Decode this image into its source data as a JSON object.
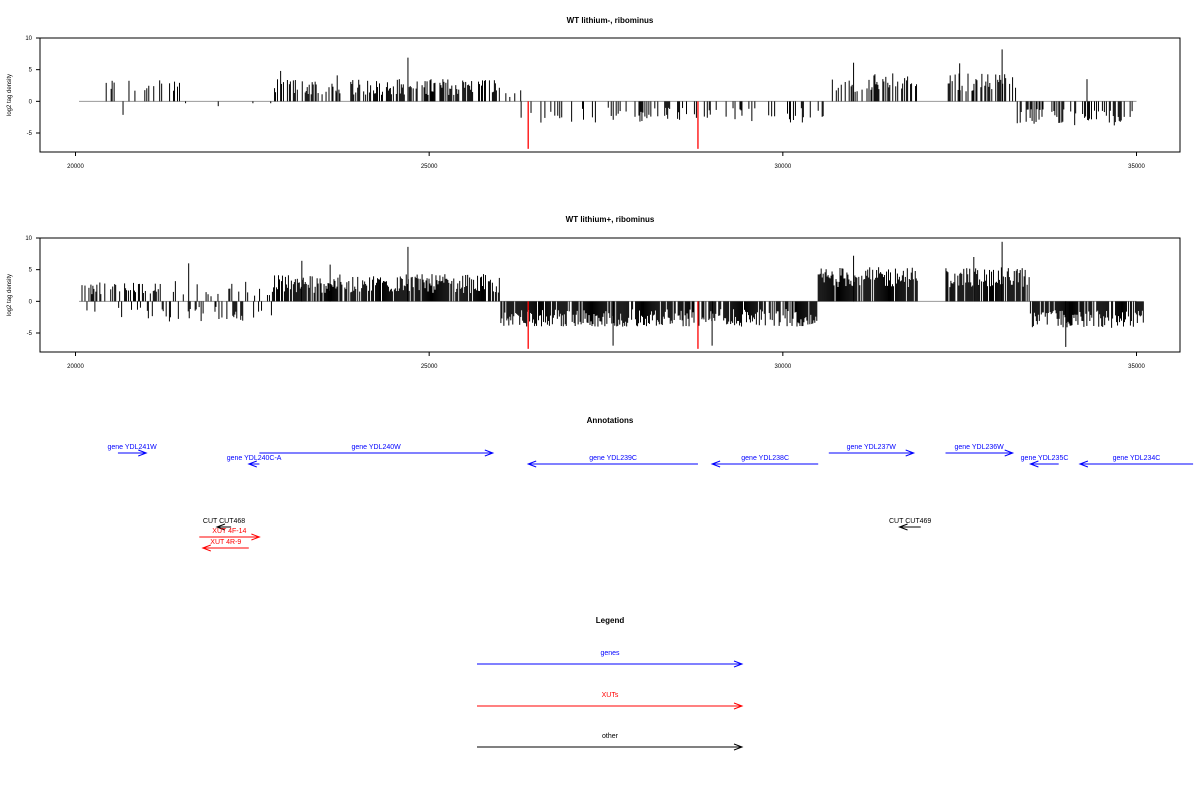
{
  "colors": {
    "gene": "#0000ff",
    "xut": "#ff0000",
    "other": "#000000",
    "marker": "#ff0000",
    "axis": "#000000",
    "baseline": "#999999"
  },
  "chart_data": [
    {
      "type": "bar",
      "title": "WT lithium-, ribominus",
      "ylabel": "log2 tag density",
      "xlim": [
        20000,
        35000
      ],
      "ylim": [
        -8,
        10
      ],
      "xticks": [
        20000,
        25000,
        30000,
        35000
      ],
      "yticks": [
        10,
        5,
        0,
        -5
      ],
      "markers_x": [
        26400,
        28800
      ],
      "segments": [
        {
          "from": 20050,
          "to": 20350,
          "mode": "zero"
        },
        {
          "from": 20350,
          "to": 21500,
          "mode": "sparse",
          "sign": 1,
          "mean": 2.5,
          "spread": 1.0,
          "prob": 0.25,
          "negChance": 0.2
        },
        {
          "from": 21500,
          "to": 22800,
          "mode": "sparse",
          "sign": -1,
          "mean": 0.5,
          "spread": 1.2,
          "prob": 0.06
        },
        {
          "from": 22800,
          "to": 26000,
          "mode": "dense",
          "sign": 1,
          "mean": 2.3,
          "spread": 1.3,
          "prob": 0.55,
          "peaks": [
            [
              24700,
              6.9
            ],
            [
              22900,
              4.8
            ],
            [
              23700,
              4.1
            ]
          ]
        },
        {
          "from": 26000,
          "to": 26300,
          "mode": "sparse",
          "sign": 1,
          "mean": 1.0,
          "spread": 0.8,
          "prob": 0.2
        },
        {
          "from": 26300,
          "to": 30700,
          "mode": "sparse",
          "sign": -1,
          "mean": 2.2,
          "spread": 1.2,
          "prob": 0.22
        },
        {
          "from": 30700,
          "to": 33300,
          "mode": "dense",
          "sign": 1,
          "mean": 3.0,
          "spread": 1.5,
          "prob": 0.5,
          "gap": [
            31900,
            32300
          ],
          "peaks": [
            [
              33100,
              8.2
            ],
            [
              31000,
              6.1
            ],
            [
              32500,
              6.0
            ]
          ]
        },
        {
          "from": 33300,
          "to": 35000,
          "mode": "dense",
          "sign": -1,
          "mean": 2.5,
          "spread": 1.3,
          "prob": 0.4,
          "peaks": [
            [
              34300,
              3.5
            ]
          ]
        }
      ]
    },
    {
      "type": "bar",
      "title": "WT lithium+, ribominus",
      "ylabel": "log2 tag density",
      "xlim": [
        20000,
        35000
      ],
      "ylim": [
        -8,
        10
      ],
      "xticks": [
        20000,
        25000,
        30000,
        35000
      ],
      "yticks": [
        10,
        5,
        0,
        -5
      ],
      "markers_x": [
        26400,
        28800
      ],
      "segments": [
        {
          "from": 20050,
          "to": 21300,
          "mode": "sparse",
          "sign": 1,
          "mean": 2.0,
          "spread": 1.0,
          "prob": 0.45,
          "negChance": 0.25
        },
        {
          "from": 21300,
          "to": 22800,
          "mode": "sparse",
          "sign": -1,
          "mean": 2.0,
          "spread": 1.2,
          "prob": 0.45,
          "posChance": 0.4,
          "peaks": [
            [
              21600,
              6.0
            ]
          ]
        },
        {
          "from": 22800,
          "to": 26000,
          "mode": "dense",
          "sign": 1,
          "mean": 2.8,
          "spread": 1.5,
          "prob": 0.85,
          "peaks": [
            [
              24700,
              8.6
            ],
            [
              23200,
              6.4
            ],
            [
              23600,
              5.8
            ]
          ]
        },
        {
          "from": 26000,
          "to": 30500,
          "mode": "dense",
          "sign": -1,
          "mean": 2.6,
          "spread": 1.4,
          "prob": 0.85,
          "peaks": [
            [
              27600,
              -7.0
            ],
            [
              29000,
              -7.0
            ]
          ]
        },
        {
          "from": 30500,
          "to": 33500,
          "mode": "dense",
          "sign": 1,
          "mean": 3.8,
          "spread": 1.6,
          "prob": 0.85,
          "gap": [
            31900,
            32300
          ],
          "peaks": [
            [
              33100,
              9.4
            ],
            [
              31000,
              7.2
            ],
            [
              32700,
              7.0
            ]
          ]
        },
        {
          "from": 33500,
          "to": 35100,
          "mode": "dense",
          "sign": -1,
          "mean": 2.8,
          "spread": 1.4,
          "prob": 0.8,
          "peaks": [
            [
              34000,
              -7.2
            ]
          ]
        }
      ]
    }
  ],
  "annotations": {
    "title": "Annotations",
    "features": [
      {
        "label": "gene YDL241W",
        "type": "gene",
        "strand": "+",
        "start": 20600,
        "end": 21000
      },
      {
        "label": "gene YDL240C-A",
        "type": "gene",
        "strand": "-",
        "start": 22450,
        "end": 22600
      },
      {
        "label": "gene YDL240W",
        "type": "gene",
        "strand": "+",
        "start": 22600,
        "end": 25900
      },
      {
        "label": "gene YDL239C",
        "type": "gene",
        "strand": "-",
        "start": 26400,
        "end": 28800
      },
      {
        "label": "gene YDL238C",
        "type": "gene",
        "strand": "-",
        "start": 29000,
        "end": 30500
      },
      {
        "label": "gene YDL237W",
        "type": "gene",
        "strand": "+",
        "start": 30650,
        "end": 31850
      },
      {
        "label": "gene YDL236W",
        "type": "gene",
        "strand": "+",
        "start": 32300,
        "end": 33250
      },
      {
        "label": "gene YDL235C",
        "type": "gene",
        "strand": "-",
        "start": 33500,
        "end": 33900
      },
      {
        "label": "gene YDL234C",
        "type": "gene",
        "strand": "-",
        "start": 34200,
        "end": 35800
      },
      {
        "label": "CUT CUT468",
        "type": "other",
        "strand": "-",
        "start": 22000,
        "end": 22200
      },
      {
        "label": "XUT 4F-14",
        "type": "xut",
        "strand": "+",
        "start": 21750,
        "end": 22600
      },
      {
        "label": "XUT 4R-9",
        "type": "xut",
        "strand": "-",
        "start": 21800,
        "end": 22450
      },
      {
        "label": "CUT CUT469",
        "type": "other",
        "strand": "-",
        "start": 31650,
        "end": 31950
      }
    ]
  },
  "legend": {
    "title": "Legend",
    "entries": [
      {
        "label": "genes",
        "type": "gene"
      },
      {
        "label": "XUTs",
        "type": "xut"
      },
      {
        "label": "other",
        "type": "other"
      }
    ]
  }
}
